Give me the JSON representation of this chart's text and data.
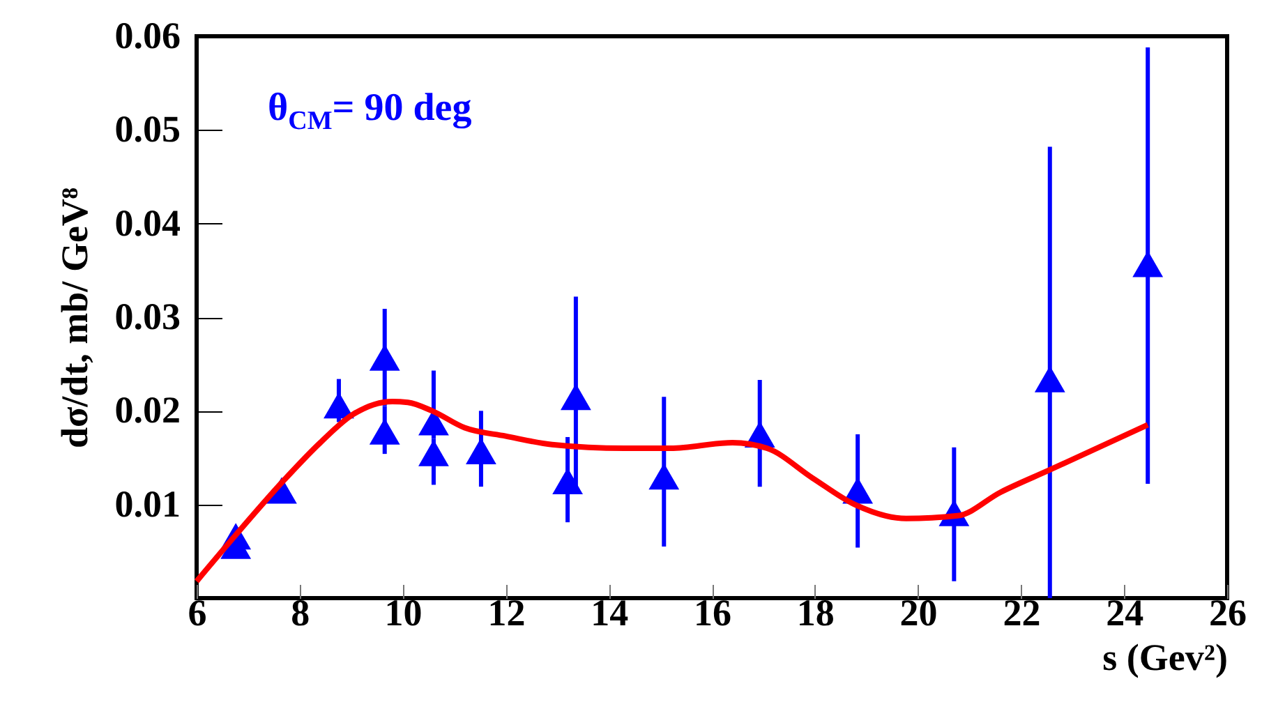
{
  "chart_data": {
    "type": "scatter",
    "xlabel": "s  (Gev²)",
    "ylabel": "dσ/dt, mb/ GeV⁸",
    "annotations": [
      "θ$_{CM}$= 90 deg"
    ],
    "xlim": [
      6,
      26
    ],
    "xticks": [
      6,
      8,
      10,
      12,
      14,
      16,
      18,
      20,
      22,
      24,
      26
    ],
    "ylim": [
      0,
      0.06
    ],
    "yticks": [
      {
        "value": 0.01,
        "label": "0.01"
      },
      {
        "value": 0.02,
        "label": "0.02"
      },
      {
        "value": 0.03,
        "label": "0.03"
      },
      {
        "value": 0.04,
        "label": "0.04"
      },
      {
        "value": 0.05,
        "label": "0.05"
      },
      {
        "value": 0.06,
        "label": "0.06"
      }
    ],
    "series": [
      {
        "color": "#0000ff",
        "marker": "triangle",
        "x": [
          6.76,
          6.76,
          7.65,
          8.76,
          9.65,
          9.65,
          10.6,
          10.6,
          11.52,
          13.2,
          13.36,
          15.07,
          16.93,
          18.83,
          20.7,
          22.56,
          24.46
        ],
        "values": [
          0.0066,
          0.0056,
          0.0115,
          0.0206,
          0.0257,
          0.0178,
          0.0188,
          0.0155,
          0.0157,
          0.0125,
          0.0215,
          0.013,
          0.0175,
          0.0115,
          0.0091,
          0.0234,
          0.0357
        ],
        "errors": [
          null,
          null,
          null,
          [
            0.0188,
            0.0234
          ],
          [
            0.0205,
            0.0309
          ],
          [
            0.0154,
            0.0205
          ],
          [
            0.017,
            0.0243
          ],
          [
            0.0121,
            0.017
          ],
          [
            0.0119,
            0.02
          ],
          [
            0.0081,
            0.0172
          ],
          [
            0.0113,
            0.0322
          ],
          [
            0.0055,
            0.0215
          ],
          [
            0.0119,
            0.0233
          ],
          [
            0.0054,
            0.0175
          ],
          [
            0.0018,
            0.0161
          ],
          [
            0,
            0.0482
          ],
          [
            0.0122,
            0.0588
          ]
        ]
      },
      {
        "type": "line",
        "color": "#ff0000",
        "x": [
          6,
          6.8,
          7.68,
          8.4,
          9.03,
          9.8,
          10.1,
          10.57,
          11.2,
          12.0,
          12.9,
          14.3,
          15.2,
          16.4,
          17.07,
          17.96,
          18.77,
          19.77,
          20.77,
          21.6,
          22.56,
          24.46
        ],
        "values": [
          0.0018,
          0.007,
          0.0125,
          0.0166,
          0.0196,
          0.021,
          0.0209,
          0.02,
          0.0182,
          0.0173,
          0.0164,
          0.016,
          0.016,
          0.0166,
          0.016,
          0.0128,
          0.01,
          0.0085,
          0.0088,
          0.0113,
          0.0137,
          0.0185
        ]
      }
    ]
  }
}
